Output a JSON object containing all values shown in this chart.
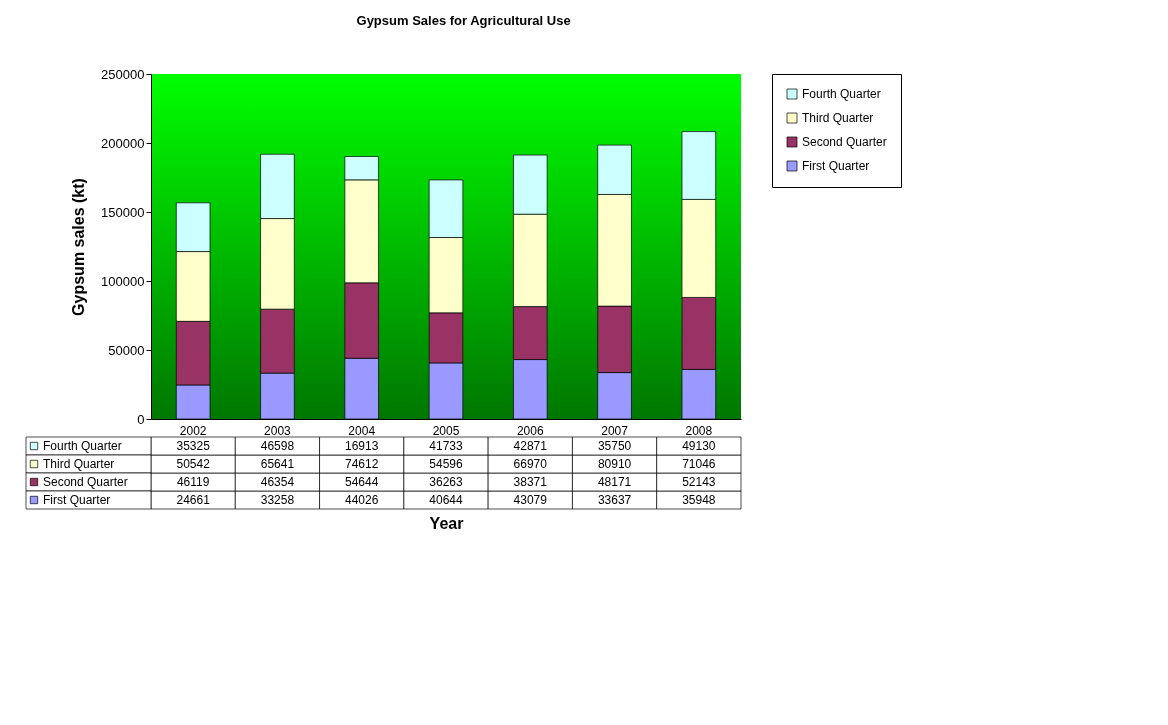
{
  "chart_data": {
    "type": "bar",
    "title": "Gypsum Sales for Agricultural Use",
    "xlabel": "Year",
    "ylabel": "Gypsum sales (kt)",
    "categories": [
      "2002",
      "2003",
      "2004",
      "2005",
      "2006",
      "2007",
      "2008"
    ],
    "stacked": true,
    "ylim": [
      0,
      250000
    ],
    "yticks": [
      0,
      50000,
      100000,
      150000,
      200000,
      250000
    ],
    "grid": false,
    "legend": "right",
    "data_labels": true,
    "series": [
      {
        "name": "First Quarter",
        "color": "#9999ff",
        "values": [
          24661,
          33258,
          44026,
          40644,
          43079,
          33637,
          35948
        ]
      },
      {
        "name": "Second Quarter",
        "color": "#993366",
        "values": [
          46119,
          46354,
          54644,
          36263,
          38371,
          48171,
          52143
        ]
      },
      {
        "name": "Third Quarter",
        "color": "#ffffcc",
        "values": [
          50542,
          65641,
          74612,
          54596,
          66970,
          80910,
          71046
        ]
      },
      {
        "name": "Fourth Quarter",
        "color": "#ccffff",
        "values": [
          35325,
          46598,
          16913,
          41733,
          42871,
          35750,
          49130
        ]
      }
    ]
  }
}
